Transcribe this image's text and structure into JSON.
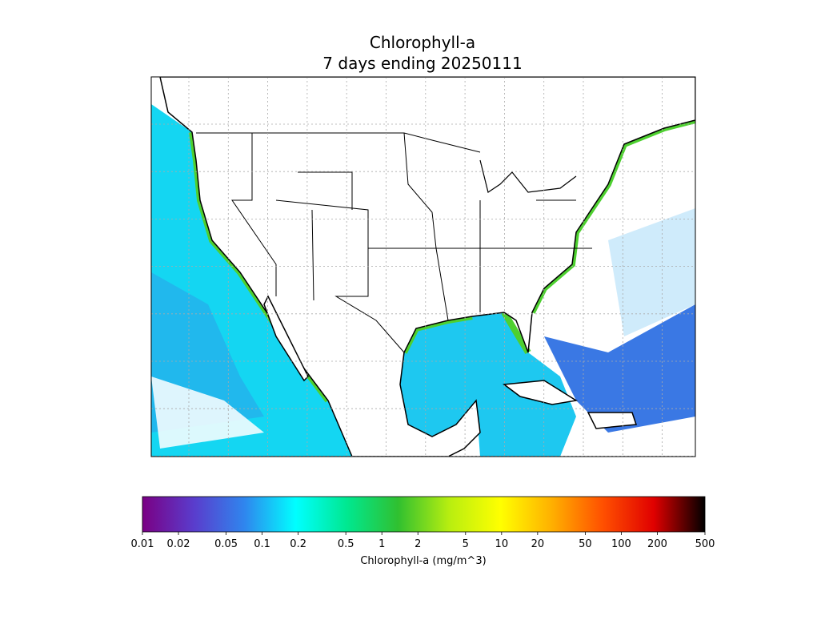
{
  "title": "Chlorophyll-a",
  "subtitle": "7 days ending 20250111",
  "colorbar": {
    "label": "Chlorophyll-a (mg/m^3)",
    "scale": "log",
    "lim": [
      0.01,
      500
    ],
    "ticks": [
      0.01,
      0.02,
      0.05,
      0.1,
      0.2,
      0.5,
      1,
      2,
      5,
      10,
      20,
      50,
      100,
      200,
      500
    ],
    "colors": [
      "#7a0084",
      "#5a3ccc",
      "#2f86ee",
      "#00ffff",
      "#00e890",
      "#30c030",
      "#b8ee10",
      "#ffff00",
      "#ffb000",
      "#ff5000",
      "#e00000",
      "#000000"
    ]
  }
}
